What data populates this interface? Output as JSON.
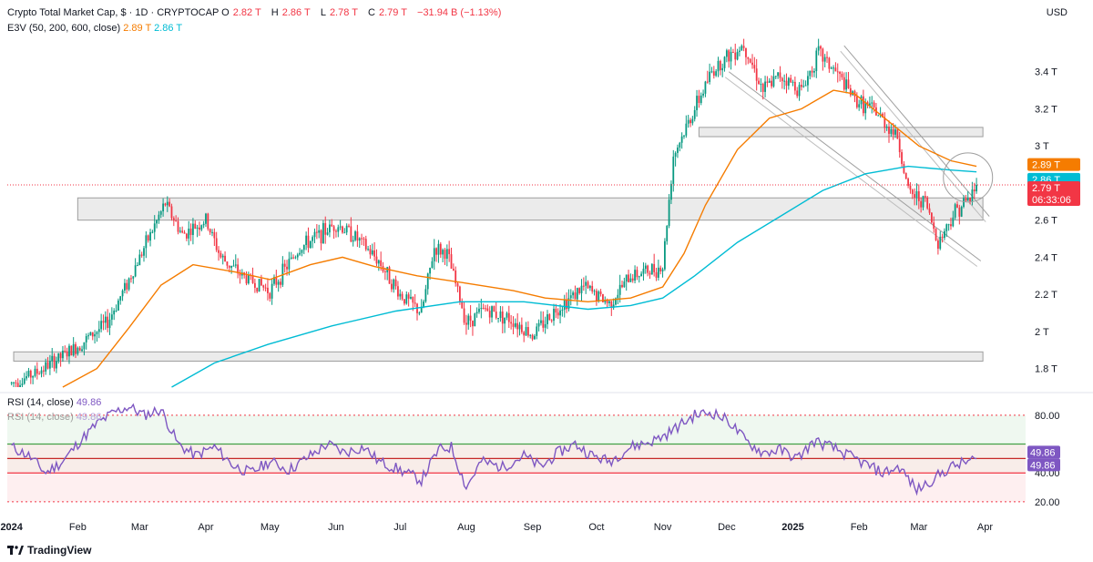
{
  "header": {
    "symbol_line": "Crypto Total Market Cap, $ · 1D · CRYPTOCAP",
    "ohlc": [
      {
        "label": "O",
        "value": "2.82 T"
      },
      {
        "label": "H",
        "value": "2.86 T"
      },
      {
        "label": "L",
        "value": "2.78 T"
      },
      {
        "label": "C",
        "value": "2.79 T"
      }
    ],
    "change": "−31.94 B (−1.13%)",
    "ema_label": "E3V (50, 200, 600, close)",
    "ema50_value": "2.89 T",
    "ema200_value": "2.86 T",
    "currency": "USD"
  },
  "rsi_header": {
    "label": "RSI (14, close)",
    "value": "49.86"
  },
  "branding": {
    "name": "TradingView"
  },
  "colors": {
    "up": "#089981",
    "down": "#f23645",
    "ema50": "#f57c00",
    "ema200": "#00bcd4",
    "rsi": "#7e57c2",
    "price_line": "#f23645",
    "zone": "#cccccc"
  },
  "chart_data": [
    {
      "type": "candlestick",
      "title": "Crypto Total Market Cap, $ · 1D · CRYPTOCAP",
      "ylabel": "USD",
      "y_ticks": [
        "1.8 T",
        "2 T",
        "2.2 T",
        "2.4 T",
        "2.6 T",
        "2.8 T",
        "3 T",
        "3.2 T",
        "3.4 T"
      ],
      "y_tick_values": [
        1.8,
        2.0,
        2.2,
        2.4,
        2.6,
        2.8,
        3.0,
        3.2,
        3.4
      ],
      "ylim": [
        1.7,
        3.6
      ],
      "x_ticks": [
        "2024",
        "Feb",
        "Mar",
        "Apr",
        "May",
        "Jun",
        "Jul",
        "Aug",
        "Sep",
        "Oct",
        "Nov",
        "Dec",
        "2025",
        "Feb",
        "Mar",
        "Apr"
      ],
      "x_tick_days": [
        0,
        31,
        60,
        91,
        121,
        152,
        182,
        213,
        244,
        274,
        305,
        335,
        366,
        397,
        425,
        456
      ],
      "xlim_days": [
        -2,
        475
      ],
      "price_path": [
        [
          0,
          1.72
        ],
        [
          12,
          1.78
        ],
        [
          31,
          1.92
        ],
        [
          45,
          2.05
        ],
        [
          55,
          2.28
        ],
        [
          62,
          2.45
        ],
        [
          72,
          2.69
        ],
        [
          80,
          2.52
        ],
        [
          91,
          2.6
        ],
        [
          98,
          2.4
        ],
        [
          108,
          2.3
        ],
        [
          121,
          2.22
        ],
        [
          135,
          2.45
        ],
        [
          152,
          2.58
        ],
        [
          160,
          2.52
        ],
        [
          172,
          2.38
        ],
        [
          182,
          2.2
        ],
        [
          192,
          2.1
        ],
        [
          198,
          2.45
        ],
        [
          204,
          2.42
        ],
        [
          213,
          2.05
        ],
        [
          222,
          2.12
        ],
        [
          235,
          2.06
        ],
        [
          244,
          1.98
        ],
        [
          255,
          2.12
        ],
        [
          268,
          2.24
        ],
        [
          280,
          2.15
        ],
        [
          290,
          2.3
        ],
        [
          305,
          2.35
        ],
        [
          310,
          2.95
        ],
        [
          320,
          3.2
        ],
        [
          328,
          3.4
        ],
        [
          335,
          3.48
        ],
        [
          343,
          3.55
        ],
        [
          352,
          3.3
        ],
        [
          360,
          3.38
        ],
        [
          370,
          3.3
        ],
        [
          378,
          3.5
        ],
        [
          386,
          3.4
        ],
        [
          395,
          3.25
        ],
        [
          405,
          3.18
        ],
        [
          415,
          3.05
        ],
        [
          420,
          2.75
        ],
        [
          428,
          2.7
        ],
        [
          434,
          2.48
        ],
        [
          442,
          2.65
        ],
        [
          449,
          2.72
        ],
        [
          452,
          2.79
        ]
      ],
      "series": [
        {
          "name": "EMA 50",
          "value_label": "2.89 T",
          "points": [
            [
              24,
              1.7
            ],
            [
              40,
              1.8
            ],
            [
              55,
              2.02
            ],
            [
              70,
              2.25
            ],
            [
              85,
              2.36
            ],
            [
              105,
              2.32
            ],
            [
              121,
              2.28
            ],
            [
              140,
              2.36
            ],
            [
              155,
              2.4
            ],
            [
              170,
              2.35
            ],
            [
              190,
              2.3
            ],
            [
              213,
              2.26
            ],
            [
              235,
              2.22
            ],
            [
              250,
              2.18
            ],
            [
              270,
              2.16
            ],
            [
              290,
              2.18
            ],
            [
              305,
              2.24
            ],
            [
              315,
              2.42
            ],
            [
              325,
              2.68
            ],
            [
              340,
              2.98
            ],
            [
              355,
              3.15
            ],
            [
              370,
              3.2
            ],
            [
              385,
              3.3
            ],
            [
              395,
              3.28
            ],
            [
              410,
              3.14
            ],
            [
              425,
              3.0
            ],
            [
              440,
              2.92
            ],
            [
              452,
              2.89
            ]
          ]
        },
        {
          "name": "EMA 200",
          "value_label": "2.86 T",
          "points": [
            [
              75,
              1.7
            ],
            [
              95,
              1.83
            ],
            [
              120,
              1.93
            ],
            [
              150,
              2.03
            ],
            [
              180,
              2.11
            ],
            [
              210,
              2.16
            ],
            [
              240,
              2.16
            ],
            [
              270,
              2.12
            ],
            [
              290,
              2.14
            ],
            [
              305,
              2.18
            ],
            [
              320,
              2.3
            ],
            [
              340,
              2.48
            ],
            [
              360,
              2.62
            ],
            [
              380,
              2.76
            ],
            [
              400,
              2.85
            ],
            [
              420,
              2.89
            ],
            [
              440,
              2.87
            ],
            [
              452,
              2.86
            ]
          ]
        }
      ],
      "zones": [
        {
          "name": "resistance-zone",
          "y_range": [
            2.6,
            2.72
          ],
          "x_range": [
            31,
            455
          ]
        },
        {
          "name": "support-zone",
          "y_range": [
            1.84,
            1.89
          ],
          "x_range": [
            1,
            455
          ]
        },
        {
          "name": "upper-zone",
          "y_range": [
            3.05,
            3.1
          ],
          "x_range": [
            322,
            455
          ]
        }
      ],
      "channel": {
        "upper": [
          [
            390,
            3.54
          ],
          [
            458,
            2.62
          ]
        ],
        "lower": [
          [
            336,
            3.4
          ],
          [
            454,
            2.38
          ]
        ]
      },
      "last_price": {
        "value": 2.79,
        "label": "2.79 T",
        "countdown": "06:33:06"
      }
    },
    {
      "type": "line",
      "title": "RSI (14, close)",
      "y_ticks": [
        "20.00",
        "40.00",
        "80.00"
      ],
      "y_tick_values": [
        20,
        40,
        80
      ],
      "ylim": [
        13,
        90
      ],
      "levels": [
        {
          "name": "overbought",
          "value": 80
        },
        {
          "name": "middle",
          "value": 60
        },
        {
          "name": "oversold",
          "value": 20
        },
        {
          "name": "lower-band",
          "value": 40
        }
      ],
      "band_60_80": true,
      "band_20_60": true,
      "value_label": "49.86",
      "series": [
        {
          "name": "RSI",
          "points": [
            [
              0,
              58
            ],
            [
              8,
              52
            ],
            [
              16,
              40
            ],
            [
              24,
              48
            ],
            [
              32,
              62
            ],
            [
              40,
              74
            ],
            [
              48,
              82
            ],
            [
              55,
              86
            ],
            [
              62,
              80
            ],
            [
              70,
              84
            ],
            [
              78,
              60
            ],
            [
              86,
              52
            ],
            [
              95,
              58
            ],
            [
              104,
              45
            ],
            [
              112,
              40
            ],
            [
              121,
              48
            ],
            [
              130,
              42
            ],
            [
              140,
              52
            ],
            [
              148,
              60
            ],
            [
              156,
              54
            ],
            [
              165,
              58
            ],
            [
              172,
              48
            ],
            [
              182,
              42
            ],
            [
              192,
              35
            ],
            [
              200,
              56
            ],
            [
              206,
              58
            ],
            [
              213,
              30
            ],
            [
              220,
              48
            ],
            [
              230,
              44
            ],
            [
              240,
              52
            ],
            [
              248,
              44
            ],
            [
              256,
              54
            ],
            [
              264,
              60
            ],
            [
              272,
              52
            ],
            [
              280,
              48
            ],
            [
              290,
              58
            ],
            [
              300,
              62
            ],
            [
              306,
              66
            ],
            [
              312,
              72
            ],
            [
              320,
              80
            ],
            [
              328,
              82
            ],
            [
              336,
              76
            ],
            [
              344,
              62
            ],
            [
              352,
              54
            ],
            [
              360,
              56
            ],
            [
              368,
              50
            ],
            [
              376,
              62
            ],
            [
              384,
              58
            ],
            [
              392,
              52
            ],
            [
              400,
              46
            ],
            [
              408,
              40
            ],
            [
              416,
              44
            ],
            [
              424,
              28
            ],
            [
              432,
              36
            ],
            [
              440,
              44
            ],
            [
              448,
              48
            ],
            [
              452,
              49.86
            ]
          ]
        }
      ]
    }
  ]
}
